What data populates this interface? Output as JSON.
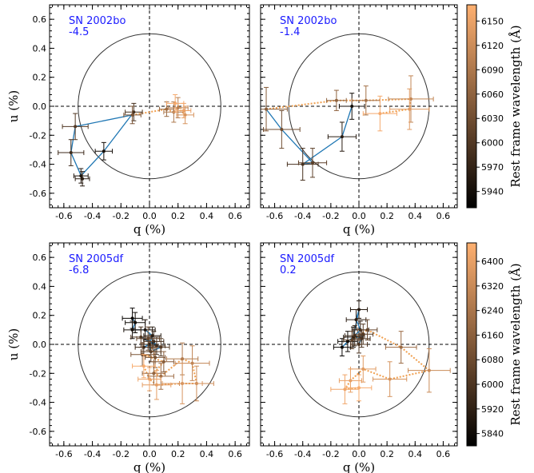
{
  "colors": {
    "label": "#1a1aff",
    "seg_low": "#1f77b4",
    "seg_high": "#f0a050",
    "cmap_low": "#000000",
    "cmap_high": "#ffb070"
  },
  "chart_data": [
    {
      "type": "scatter",
      "name_label": "SN 2002bo",
      "epoch_label": "-4.5",
      "xlabel": "q (%)",
      "ylabel": "u (%)",
      "xlim": [
        -0.7,
        0.7
      ],
      "ylim": [
        -0.7,
        0.7
      ],
      "x_ticks": [
        "-0.6",
        "-0.4",
        "-0.2",
        "0.0",
        "0.2",
        "0.4",
        "0.6"
      ],
      "y_ticks": [
        "-0.6",
        "-0.4",
        "-0.2",
        "0.0",
        "0.2",
        "0.4",
        "0.6"
      ],
      "circle_radius": 0.5,
      "wave_range": [
        5920,
        6170
      ],
      "points": [
        {
          "q": -0.11,
          "u": -0.04,
          "w": 5990,
          "e": 0.06
        },
        {
          "q": -0.32,
          "u": -0.31,
          "w": 5940,
          "e": 0.06
        },
        {
          "q": -0.48,
          "u": -0.48,
          "w": 5950,
          "e": 0.05
        },
        {
          "q": -0.47,
          "u": -0.5,
          "w": 5960,
          "e": 0.05
        },
        {
          "q": -0.55,
          "u": -0.32,
          "w": 5980,
          "e": 0.09
        },
        {
          "q": -0.52,
          "u": -0.14,
          "w": 6000,
          "e": 0.09
        },
        {
          "q": -0.12,
          "u": -0.06,
          "w": 6040,
          "e": 0.06
        },
        {
          "q": 0.12,
          "u": -0.02,
          "w": 6070,
          "e": 0.05
        },
        {
          "q": 0.17,
          "u": -0.04,
          "w": 6090,
          "e": 0.07
        },
        {
          "q": 0.2,
          "u": -0.01,
          "w": 6100,
          "e": 0.07
        },
        {
          "q": 0.25,
          "u": -0.06,
          "w": 6130,
          "e": 0.06
        },
        {
          "q": 0.24,
          "u": -0.03,
          "w": 6150,
          "e": 0.05
        },
        {
          "q": 0.18,
          "u": 0.02,
          "w": 6160,
          "e": 0.06
        }
      ],
      "solid_count": 7
    },
    {
      "type": "scatter",
      "name_label": "SN 2002bo",
      "epoch_label": "-1.4",
      "xlabel": "q (%)",
      "ylabel": "",
      "xlim": [
        -0.7,
        0.7
      ],
      "ylim": [
        -0.7,
        0.7
      ],
      "x_ticks": [
        "-0.6",
        "-0.4",
        "-0.2",
        "0.0",
        "0.2",
        "0.4",
        "0.6"
      ],
      "y_ticks": [],
      "circle_radius": 0.5,
      "wave_range": [
        5920,
        6170
      ],
      "points": [
        {
          "q": -0.05,
          "u": 0.0,
          "w": 5940,
          "e": 0.09
        },
        {
          "q": -0.12,
          "u": -0.21,
          "w": 5960,
          "e": 0.1
        },
        {
          "q": -0.4,
          "u": -0.4,
          "w": 5990,
          "e": 0.11
        },
        {
          "q": -0.33,
          "u": -0.39,
          "w": 6010,
          "e": 0.1
        },
        {
          "q": -0.55,
          "u": -0.16,
          "w": 6030,
          "e": 0.13
        },
        {
          "q": -0.66,
          "u": -0.02,
          "w": 6050,
          "e": 0.15
        },
        {
          "q": -0.16,
          "u": 0.04,
          "w": 6060,
          "e": 0.07
        },
        {
          "q": 0.05,
          "u": 0.04,
          "w": 6080,
          "e": 0.1
        },
        {
          "q": 0.37,
          "u": 0.05,
          "w": 6110,
          "e": 0.16
        },
        {
          "q": 0.36,
          "u": -0.02,
          "w": 6140,
          "e": 0.14
        },
        {
          "q": 0.15,
          "u": -0.05,
          "w": 6160,
          "e": 0.12
        }
      ],
      "solid_count": 6
    },
    {
      "type": "scatter",
      "name_label": "SN 2005df",
      "epoch_label": "-6.8",
      "xlabel": "q (%)",
      "ylabel": "u (%)",
      "xlim": [
        -0.7,
        0.7
      ],
      "ylim": [
        -0.7,
        0.7
      ],
      "x_ticks": [
        "-0.6",
        "-0.4",
        "-0.2",
        "0.0",
        "0.2",
        "0.4",
        "0.6"
      ],
      "y_ticks": [
        "-0.6",
        "-0.4",
        "-0.2",
        "0.0",
        "0.2",
        "0.4",
        "0.6"
      ],
      "circle_radius": 0.5,
      "wave_range": [
        5800,
        6460
      ],
      "points": [
        {
          "q": -0.12,
          "u": 0.18,
          "w": 5820,
          "e": 0.07
        },
        {
          "q": -0.1,
          "u": 0.15,
          "w": 5840,
          "e": 0.07
        },
        {
          "q": -0.12,
          "u": 0.1,
          "w": 5860,
          "e": 0.06
        },
        {
          "q": -0.03,
          "u": 0.1,
          "w": 5880,
          "e": 0.07
        },
        {
          "q": 0.02,
          "u": 0.06,
          "w": 5900,
          "e": 0.06
        },
        {
          "q": 0.0,
          "u": 0.0,
          "w": 5920,
          "e": 0.05
        },
        {
          "q": -0.04,
          "u": -0.02,
          "w": 5940,
          "e": 0.06
        },
        {
          "q": 0.03,
          "u": 0.02,
          "w": 5960,
          "e": 0.07
        },
        {
          "q": 0.05,
          "u": -0.01,
          "w": 5980,
          "e": 0.06
        },
        {
          "q": -0.06,
          "u": 0.05,
          "w": 6000,
          "e": 0.07
        },
        {
          "q": 0.08,
          "u": -0.02,
          "w": 6020,
          "e": 0.06
        },
        {
          "q": 0.01,
          "u": -0.05,
          "w": 6040,
          "e": 0.07
        },
        {
          "q": -0.01,
          "u": 0.04,
          "w": 6060,
          "e": 0.08
        },
        {
          "q": 0.04,
          "u": -0.09,
          "w": 6100,
          "e": 0.07
        },
        {
          "q": -0.05,
          "u": -0.07,
          "w": 6120,
          "e": 0.08
        },
        {
          "q": 0.1,
          "u": -0.12,
          "w": 6150,
          "e": 0.07
        },
        {
          "q": 0.03,
          "u": -0.2,
          "w": 6180,
          "e": 0.08
        },
        {
          "q": 0.08,
          "u": -0.22,
          "w": 6210,
          "e": 0.09
        },
        {
          "q": 0.23,
          "u": -0.1,
          "w": 6260,
          "e": 0.11
        },
        {
          "q": 0.3,
          "u": -0.13,
          "w": 6300,
          "e": 0.12
        },
        {
          "q": 0.33,
          "u": -0.27,
          "w": 6330,
          "e": 0.12
        },
        {
          "q": 0.23,
          "u": -0.27,
          "w": 6360,
          "e": 0.14
        },
        {
          "q": 0.05,
          "u": -0.28,
          "w": 6390,
          "e": 0.1
        },
        {
          "q": 0.0,
          "u": -0.24,
          "w": 6410,
          "e": 0.08
        },
        {
          "q": -0.04,
          "u": -0.15,
          "w": 6440,
          "e": 0.08
        }
      ],
      "solid_count": 13
    },
    {
      "type": "scatter",
      "name_label": "SN 2005df",
      "epoch_label": "0.2",
      "xlabel": "q (%)",
      "ylabel": "",
      "xlim": [
        -0.7,
        0.7
      ],
      "ylim": [
        -0.7,
        0.7
      ],
      "x_ticks": [
        "-0.6",
        "-0.4",
        "-0.2",
        "0.0",
        "0.2",
        "0.4",
        "0.6"
      ],
      "y_ticks": [],
      "circle_radius": 0.5,
      "wave_range": [
        5800,
        6460
      ],
      "points": [
        {
          "q": -0.12,
          "u": -0.02,
          "w": 5820,
          "e": 0.06
        },
        {
          "q": -0.08,
          "u": 0.02,
          "w": 5840,
          "e": 0.07
        },
        {
          "q": -0.04,
          "u": 0.05,
          "w": 5860,
          "e": 0.07
        },
        {
          "q": 0.0,
          "u": 0.24,
          "w": 5890,
          "e": 0.06
        },
        {
          "q": -0.02,
          "u": 0.17,
          "w": 5910,
          "e": 0.07
        },
        {
          "q": 0.01,
          "u": 0.1,
          "w": 5940,
          "e": 0.06
        },
        {
          "q": -0.03,
          "u": 0.06,
          "w": 5960,
          "e": 0.07
        },
        {
          "q": 0.02,
          "u": 0.04,
          "w": 5980,
          "e": 0.06
        },
        {
          "q": 0.0,
          "u": 0.0,
          "w": 6000,
          "e": 0.06
        },
        {
          "q": 0.03,
          "u": 0.07,
          "w": 6020,
          "e": 0.07
        },
        {
          "q": -0.05,
          "u": 0.03,
          "w": 6040,
          "e": 0.06
        },
        {
          "q": 0.06,
          "u": 0.1,
          "w": 6060,
          "e": 0.07
        },
        {
          "q": 0.3,
          "u": -0.02,
          "w": 6200,
          "e": 0.11
        },
        {
          "q": 0.5,
          "u": -0.18,
          "w": 6320,
          "e": 0.15
        },
        {
          "q": 0.22,
          "u": -0.24,
          "w": 6350,
          "e": 0.12
        },
        {
          "q": 0.03,
          "u": -0.17,
          "w": 6380,
          "e": 0.09
        },
        {
          "q": -0.06,
          "u": -0.25,
          "w": 6400,
          "e": 0.08
        },
        {
          "q": -0.1,
          "u": -0.31,
          "w": 6420,
          "e": 0.1
        },
        {
          "q": 0.0,
          "u": -0.3,
          "w": 6440,
          "e": 0.09
        }
      ],
      "solid_count": 11
    }
  ],
  "colorbars": [
    {
      "title": "Rest frame wavelength (Å)",
      "ticks": [
        "5940",
        "5970",
        "6000",
        "6030",
        "6060",
        "6090",
        "6120",
        "6150"
      ],
      "range": [
        5920,
        6170
      ]
    },
    {
      "title": "Rest frame wavelength (Å)",
      "ticks": [
        "5840",
        "5920",
        "6000",
        "6080",
        "6160",
        "6240",
        "6320",
        "6400"
      ],
      "range": [
        5800,
        6460
      ]
    }
  ]
}
